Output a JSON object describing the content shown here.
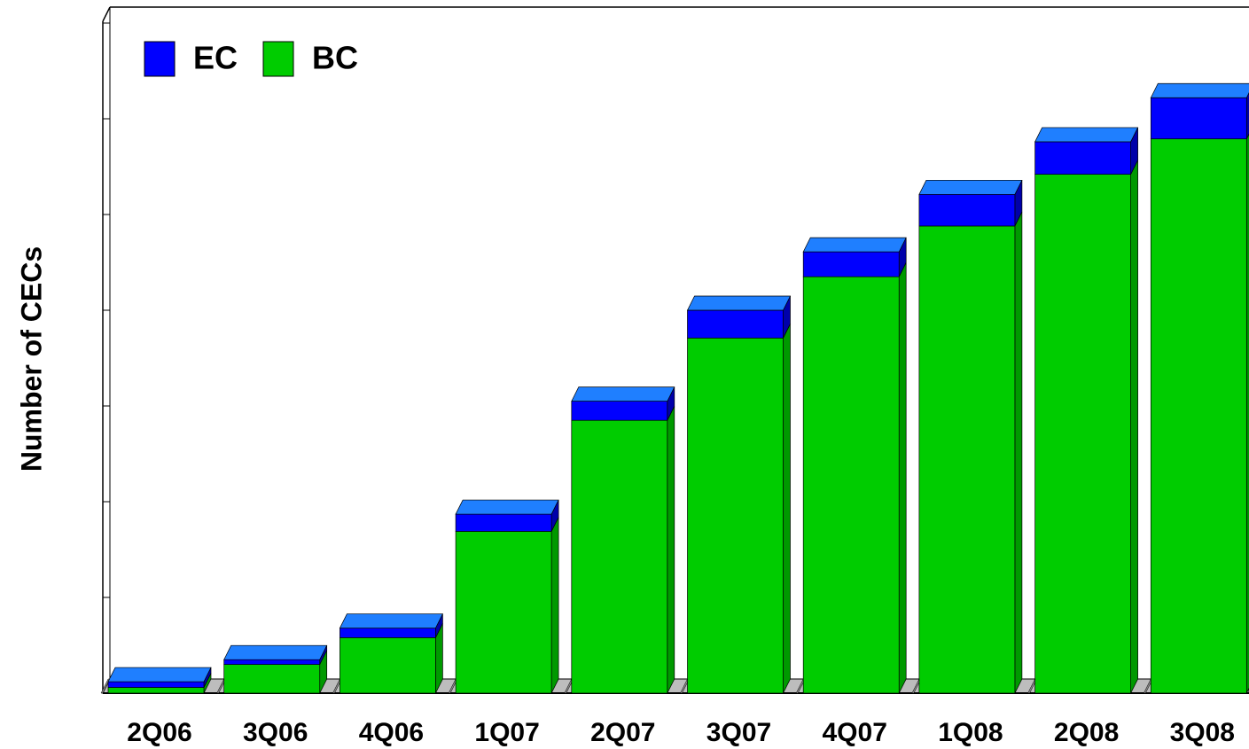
{
  "chart_data": {
    "type": "bar3d_stacked",
    "y_label": "Number of CECs",
    "categories": [
      "2Q06",
      "3Q06",
      "4Q06",
      "1Q07",
      "2Q07",
      "3Q07",
      "4Q07",
      "1Q08",
      "2Q08",
      "3Q08"
    ],
    "series": [
      {
        "name": "BC",
        "color": "#00cc00",
        "side_color": "#009900",
        "top_color": "#33ff33",
        "values": [
          0.06,
          0.3,
          0.58,
          1.69,
          2.85,
          3.71,
          4.35,
          4.88,
          5.42,
          5.79
        ]
      },
      {
        "name": "EC",
        "color": "#0000ff",
        "side_color": "#0000aa",
        "top_color": "#1f7fff",
        "values": [
          0.06,
          0.05,
          0.1,
          0.18,
          0.2,
          0.29,
          0.26,
          0.33,
          0.34,
          0.43
        ]
      }
    ],
    "legend_order": [
      "EC",
      "BC"
    ],
    "ylim": [
      0,
      7
    ],
    "yticks": [
      0,
      1,
      2,
      3,
      4,
      5,
      6,
      7
    ]
  }
}
